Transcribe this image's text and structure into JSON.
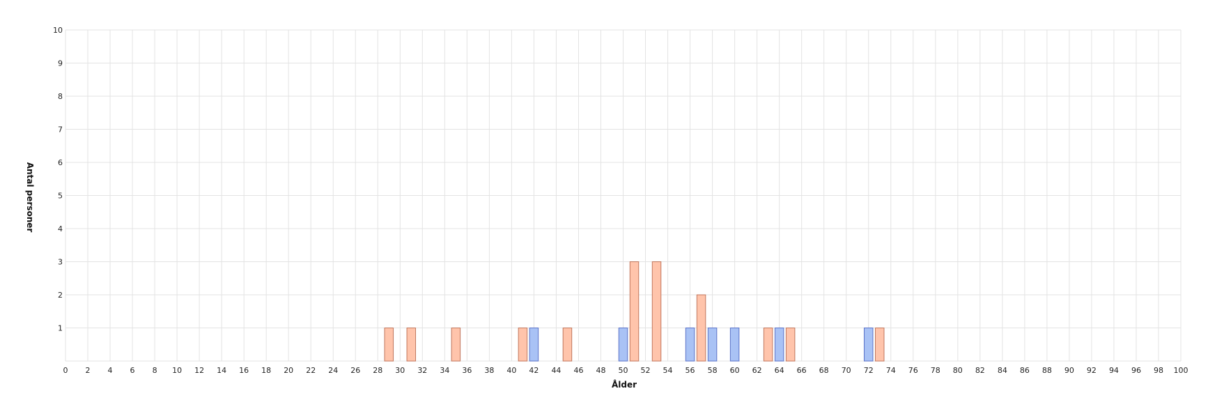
{
  "chart_data": {
    "type": "bar",
    "title": "",
    "xlabel": "Ålder",
    "ylabel": "Antal personer",
    "xlim": [
      0,
      100
    ],
    "ylim": [
      0,
      10
    ],
    "x_ticks": [
      0,
      2,
      4,
      6,
      8,
      10,
      12,
      14,
      16,
      18,
      20,
      22,
      24,
      26,
      28,
      30,
      32,
      34,
      36,
      38,
      40,
      42,
      44,
      46,
      48,
      50,
      52,
      54,
      56,
      58,
      60,
      62,
      64,
      66,
      68,
      70,
      72,
      74,
      76,
      78,
      80,
      82,
      84,
      86,
      88,
      90,
      92,
      94,
      96,
      98,
      100
    ],
    "y_ticks": [
      1,
      2,
      3,
      4,
      5,
      6,
      7,
      8,
      9,
      10
    ],
    "grid": true,
    "legend": "none",
    "series": [
      {
        "color": "#ffc4ab",
        "stroke": "#c0765c",
        "points": [
          {
            "x": 29,
            "y": 1
          },
          {
            "x": 31,
            "y": 1
          },
          {
            "x": 35,
            "y": 1
          },
          {
            "x": 41,
            "y": 1
          },
          {
            "x": 45,
            "y": 1
          },
          {
            "x": 51,
            "y": 3
          },
          {
            "x": 53,
            "y": 3
          },
          {
            "x": 57,
            "y": 2
          },
          {
            "x": 63,
            "y": 1
          },
          {
            "x": 65,
            "y": 1
          },
          {
            "x": 73,
            "y": 1
          }
        ]
      },
      {
        "color": "#a9c2f5",
        "stroke": "#5a72c8",
        "points": [
          {
            "x": 42,
            "y": 1
          },
          {
            "x": 50,
            "y": 1
          },
          {
            "x": 56,
            "y": 1
          },
          {
            "x": 58,
            "y": 1
          },
          {
            "x": 60,
            "y": 1
          },
          {
            "x": 64,
            "y": 1
          },
          {
            "x": 72,
            "y": 1
          }
        ]
      }
    ]
  }
}
